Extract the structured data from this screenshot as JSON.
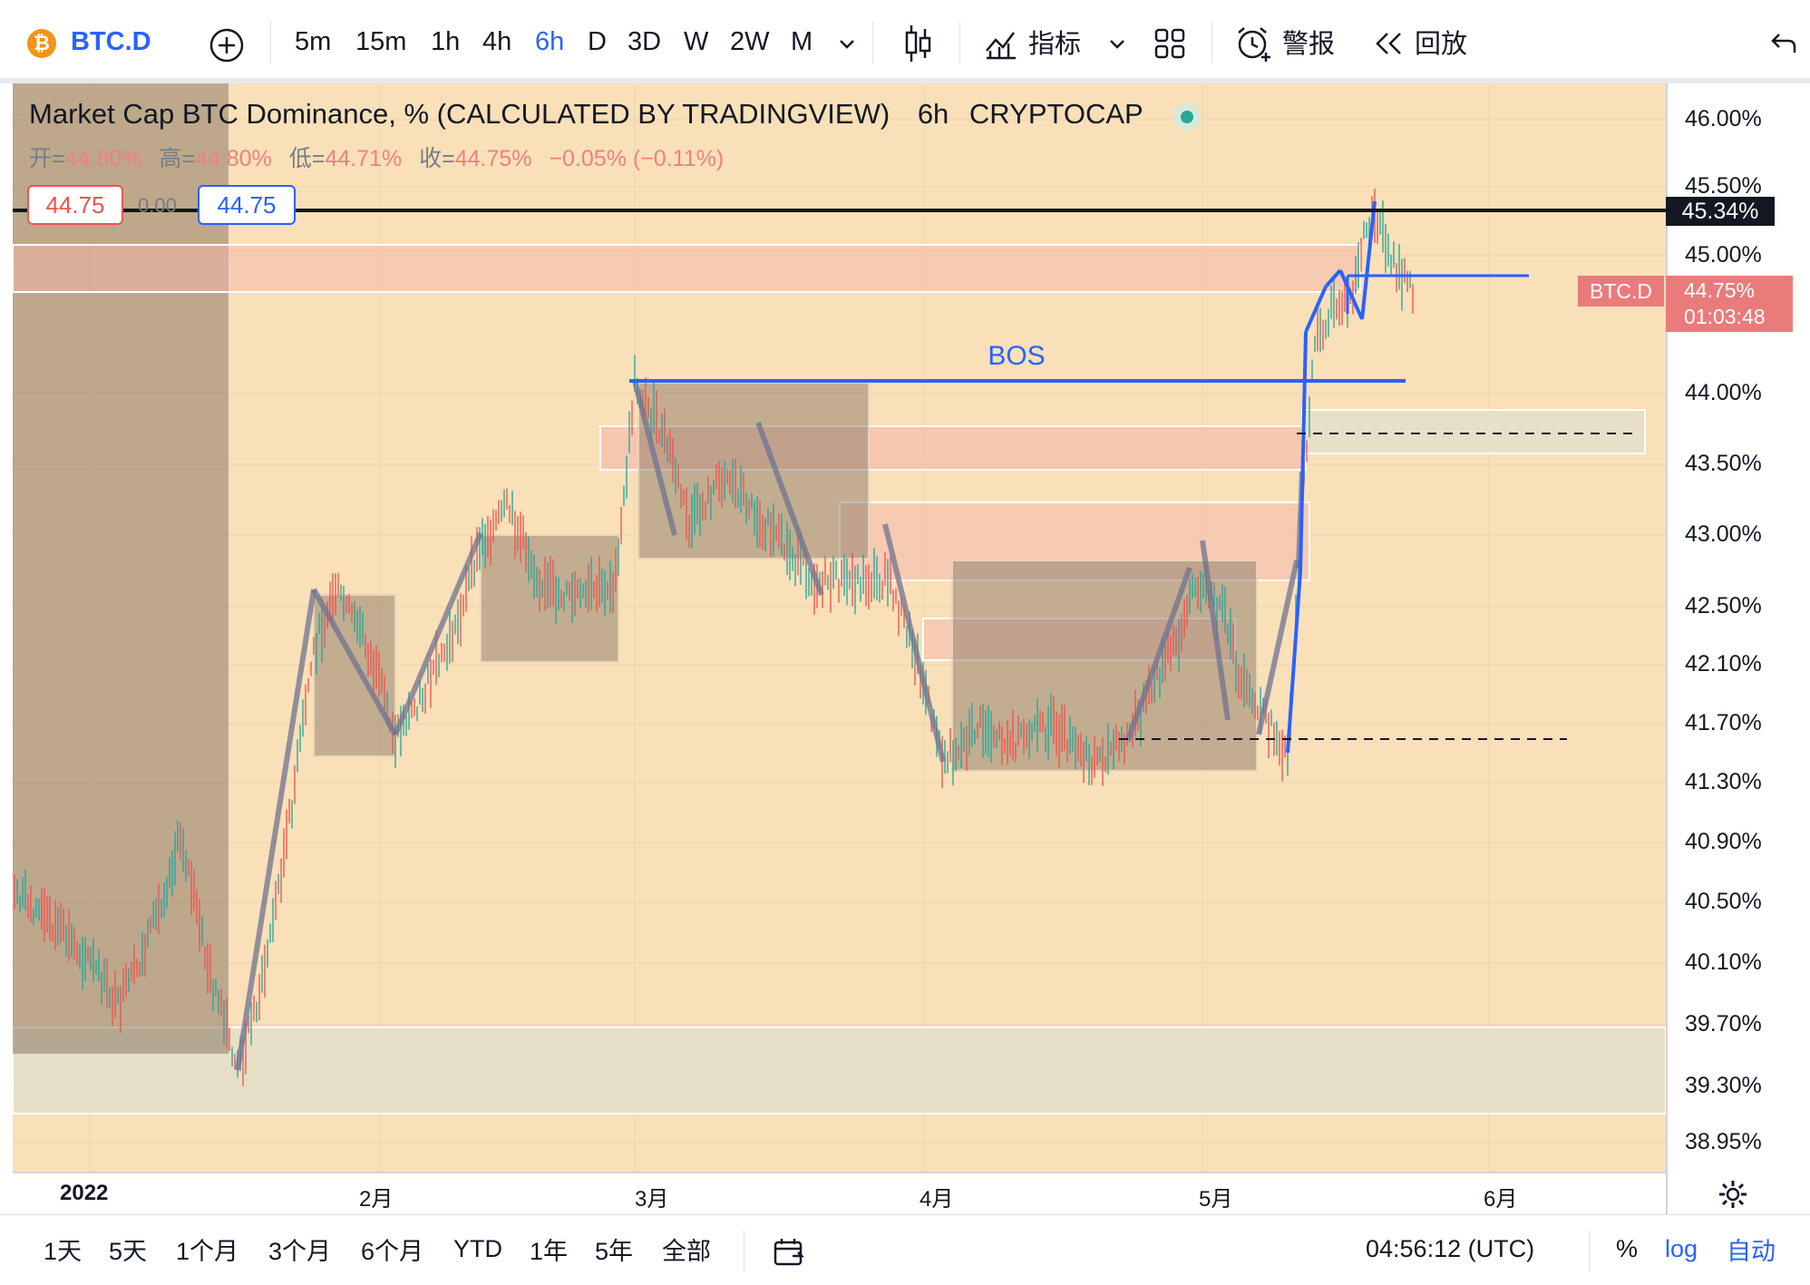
{
  "toolbar": {
    "symbol": "BTC.D",
    "intervals": [
      {
        "label": "5m",
        "active": false
      },
      {
        "label": "15m",
        "active": false
      },
      {
        "label": "1h",
        "active": false
      },
      {
        "label": "4h",
        "active": false
      },
      {
        "label": "6h",
        "active": true
      },
      {
        "label": "D",
        "active": false
      },
      {
        "label": "3D",
        "active": false
      },
      {
        "label": "W",
        "active": false
      },
      {
        "label": "2W",
        "active": false
      },
      {
        "label": "M",
        "active": false
      }
    ],
    "indicators_label": "指标",
    "alerts_label": "警报",
    "replay_label": "回放"
  },
  "legend": {
    "title": "Market Cap BTC Dominance, % (CALCULATED BY TRADINGVIEW)",
    "interval": "6h",
    "exchange": "CRYPTOCAP",
    "open_label": "开=",
    "open_value": "44.80%",
    "high_label": "高=",
    "high_value": "44.80%",
    "low_label": "低=",
    "low_value": "44.71%",
    "close_label": "收=",
    "close_value": "44.75%",
    "change": "−0.05% (−0.11%)",
    "sell_value": "44.75",
    "spread": "0.00",
    "buy_value": "44.75"
  },
  "annotation_bos": "BOS",
  "price_scale": {
    "labels": [
      "46.00%",
      "45.50%",
      "45.00%",
      "44.00%",
      "43.50%",
      "43.00%",
      "42.50%",
      "42.10%",
      "41.70%",
      "41.30%",
      "40.90%",
      "40.50%",
      "40.10%",
      "39.70%",
      "39.30%",
      "38.95%"
    ],
    "horizontal_line_label": "45.34%",
    "current_symbol": "BTC.D",
    "current_value": "44.75%",
    "countdown": "01:03:48"
  },
  "time_axis": {
    "labels": [
      "2022",
      "2月",
      "3月",
      "4月",
      "5月",
      "6月"
    ]
  },
  "footer": {
    "ranges": [
      "1天",
      "5天",
      "1个月",
      "3个月",
      "6个月",
      "YTD",
      "1年",
      "5年",
      "全部"
    ],
    "clock": "04:56:12 (UTC)",
    "percent_label": "%",
    "log_label": "log",
    "auto_label": "自动"
  },
  "colors": {
    "accent": "#2962ff",
    "chart_bg": "#f9e0b8",
    "up": "#26a69a",
    "down": "#ef5350",
    "price_tag": "#ea7b7b"
  }
}
